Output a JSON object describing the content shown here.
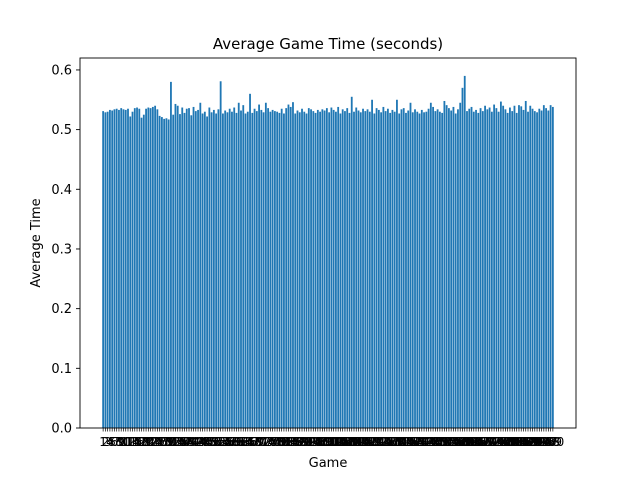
{
  "chart_data": {
    "type": "bar",
    "title": "Average Game Time (seconds)",
    "xlabel": "Game",
    "ylabel": "Average Time",
    "ylim": [
      0,
      0.62
    ],
    "yticks": [
      "0.0",
      "0.1",
      "0.2",
      "0.3",
      "0.4",
      "0.5",
      "0.6"
    ],
    "ytick_values": [
      0.0,
      0.1,
      0.2,
      0.3,
      0.4,
      0.5,
      0.6
    ],
    "color": "#1f77b4",
    "grid": false,
    "categories": [
      "1",
      "2",
      "3",
      "4",
      "5",
      "6",
      "7",
      "8",
      "9",
      "10",
      "11",
      "12",
      "13",
      "14",
      "15",
      "16",
      "17",
      "18",
      "19",
      "20",
      "21",
      "22",
      "23",
      "24",
      "25",
      "26",
      "27",
      "28",
      "29",
      "30",
      "31",
      "32",
      "33",
      "34",
      "35",
      "36",
      "37",
      "38",
      "39",
      "40",
      "41",
      "42",
      "43",
      "44",
      "45",
      "46",
      "47",
      "48",
      "49",
      "50",
      "51",
      "52",
      "53",
      "54",
      "55",
      "56",
      "57",
      "58",
      "59",
      "60",
      "61",
      "62",
      "63",
      "64",
      "65",
      "66",
      "67",
      "68",
      "69",
      "70",
      "71",
      "72",
      "73",
      "74",
      "75",
      "76",
      "77",
      "78",
      "79",
      "80",
      "81",
      "82",
      "83",
      "84",
      "85",
      "86",
      "87",
      "88",
      "89",
      "90",
      "91",
      "92",
      "93",
      "94",
      "95",
      "96",
      "97",
      "98",
      "99",
      "100",
      "101",
      "102",
      "103",
      "104",
      "105",
      "106",
      "107",
      "108",
      "109",
      "110",
      "111",
      "112",
      "113",
      "114",
      "115",
      "116",
      "117",
      "118",
      "119",
      "120",
      "121",
      "122",
      "123",
      "124",
      "125",
      "126",
      "127",
      "128",
      "129",
      "130",
      "131",
      "132",
      "133",
      "134",
      "135",
      "136",
      "137",
      "138",
      "139",
      "140",
      "141",
      "142",
      "143",
      "144",
      "145",
      "146",
      "147",
      "148",
      "149",
      "150",
      "151",
      "152",
      "153",
      "154",
      "155",
      "156",
      "157",
      "158",
      "159",
      "160",
      "161",
      "162",
      "163",
      "164",
      "165",
      "166",
      "167",
      "168",
      "169",
      "170",
      "171",
      "172",
      "173",
      "174",
      "175",
      "176",
      "177",
      "178",
      "179",
      "180",
      "181",
      "182",
      "183",
      "184",
      "185",
      "186",
      "187",
      "188",
      "189",
      "190",
      "191",
      "192",
      "193",
      "194",
      "195",
      "196",
      "197",
      "198",
      "199",
      "200"
    ],
    "values": [
      0.531,
      0.529,
      0.53,
      0.533,
      0.532,
      0.534,
      0.535,
      0.533,
      0.536,
      0.534,
      0.533,
      0.535,
      0.522,
      0.53,
      0.536,
      0.537,
      0.535,
      0.52,
      0.525,
      0.535,
      0.537,
      0.536,
      0.538,
      0.54,
      0.534,
      0.523,
      0.521,
      0.518,
      0.519,
      0.517,
      0.58,
      0.525,
      0.543,
      0.54,
      0.526,
      0.537,
      0.528,
      0.535,
      0.536,
      0.524,
      0.538,
      0.531,
      0.533,
      0.545,
      0.527,
      0.53,
      0.522,
      0.537,
      0.529,
      0.533,
      0.527,
      0.534,
      0.581,
      0.527,
      0.532,
      0.529,
      0.535,
      0.53,
      0.537,
      0.528,
      0.545,
      0.532,
      0.541,
      0.527,
      0.53,
      0.56,
      0.528,
      0.535,
      0.531,
      0.542,
      0.533,
      0.529,
      0.545,
      0.536,
      0.53,
      0.533,
      0.531,
      0.53,
      0.528,
      0.535,
      0.527,
      0.536,
      0.542,
      0.538,
      0.546,
      0.527,
      0.532,
      0.529,
      0.535,
      0.53,
      0.527,
      0.536,
      0.534,
      0.531,
      0.528,
      0.533,
      0.53,
      0.534,
      0.532,
      0.536,
      0.529,
      0.537,
      0.533,
      0.53,
      0.538,
      0.527,
      0.534,
      0.531,
      0.536,
      0.528,
      0.555,
      0.53,
      0.537,
      0.532,
      0.529,
      0.535,
      0.531,
      0.534,
      0.53,
      0.55,
      0.527,
      0.536,
      0.533,
      0.529,
      0.538,
      0.531,
      0.535,
      0.528,
      0.533,
      0.53,
      0.55,
      0.527,
      0.534,
      0.536,
      0.528,
      0.532,
      0.545,
      0.529,
      0.534,
      0.53,
      0.527,
      0.533,
      0.529,
      0.53,
      0.535,
      0.545,
      0.538,
      0.531,
      0.534,
      0.53,
      0.528,
      0.548,
      0.541,
      0.536,
      0.532,
      0.538,
      0.527,
      0.534,
      0.545,
      0.57,
      0.59,
      0.531,
      0.535,
      0.538,
      0.53,
      0.533,
      0.528,
      0.536,
      0.531,
      0.54,
      0.534,
      0.537,
      0.53,
      0.542,
      0.536,
      0.53,
      0.547,
      0.54,
      0.534,
      0.528,
      0.537,
      0.531,
      0.54,
      0.528,
      0.541,
      0.539,
      0.533,
      0.548,
      0.53,
      0.54,
      0.535,
      0.531,
      0.529,
      0.535,
      0.532,
      0.541,
      0.536,
      0.532,
      0.541,
      0.538
    ]
  }
}
